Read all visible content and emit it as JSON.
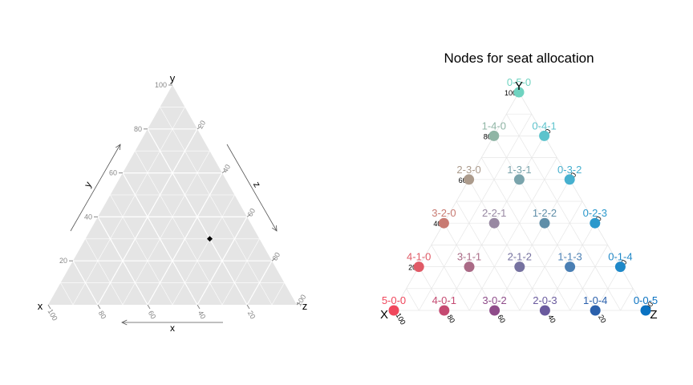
{
  "chart_data": [
    {
      "type": "scatter",
      "subtype": "ternary",
      "title": "",
      "axes": {
        "x": {
          "label": "x",
          "corner_label": "x",
          "ticks": [
            "20",
            "40",
            "60",
            "80",
            "100"
          ]
        },
        "y": {
          "label": "y",
          "corner_label": "y",
          "ticks": [
            "20",
            "40",
            "60",
            "80",
            "100"
          ]
        },
        "z": {
          "label": "z",
          "corner_label": "z",
          "ticks": [
            "20",
            "40",
            "60",
            "80",
            "100"
          ]
        }
      },
      "grid": true,
      "points": [
        {
          "x": 20,
          "y": 30,
          "z": 50
        }
      ],
      "colors": {
        "panel": "#e5e5e5",
        "grid": "#ffffff",
        "point": "#000000"
      }
    },
    {
      "type": "scatter",
      "subtype": "ternary",
      "title": "Nodes for seat allocation",
      "axes": {
        "X": {
          "corner_label": "X",
          "ticks": [
            "20",
            "40",
            "60",
            "80",
            "100"
          ]
        },
        "Y": {
          "corner_label": "Y",
          "ticks": [
            "20",
            "40",
            "60",
            "80",
            "100"
          ]
        },
        "Z": {
          "corner_label": "Z",
          "ticks": [
            "20",
            "40",
            "60",
            "80",
            "100"
          ]
        }
      },
      "grid": true,
      "nodes": [
        {
          "label": "0-5-0",
          "x": 0,
          "y": 5,
          "z": 0,
          "color": "#6fd3c0"
        },
        {
          "label": "1-4-0",
          "x": 1,
          "y": 4,
          "z": 0,
          "color": "#8fb5a5"
        },
        {
          "label": "0-4-1",
          "x": 0,
          "y": 4,
          "z": 1,
          "color": "#5cc3cc"
        },
        {
          "label": "2-3-0",
          "x": 2,
          "y": 3,
          "z": 0,
          "color": "#ac9b8c"
        },
        {
          "label": "1-3-1",
          "x": 1,
          "y": 3,
          "z": 1,
          "color": "#7aa4ac"
        },
        {
          "label": "0-3-2",
          "x": 0,
          "y": 3,
          "z": 2,
          "color": "#46b0cf"
        },
        {
          "label": "3-2-0",
          "x": 3,
          "y": 2,
          "z": 0,
          "color": "#c87a72"
        },
        {
          "label": "2-2-1",
          "x": 2,
          "y": 2,
          "z": 1,
          "color": "#9888a2"
        },
        {
          "label": "1-2-2",
          "x": 1,
          "y": 2,
          "z": 2,
          "color": "#5f8ea8"
        },
        {
          "label": "0-2-3",
          "x": 0,
          "y": 2,
          "z": 3,
          "color": "#2a98cc"
        },
        {
          "label": "4-1-0",
          "x": 4,
          "y": 1,
          "z": 0,
          "color": "#e05a66"
        },
        {
          "label": "3-1-1",
          "x": 3,
          "y": 1,
          "z": 1,
          "color": "#aa6a86"
        },
        {
          "label": "2-1-2",
          "x": 2,
          "y": 1,
          "z": 2,
          "color": "#7672a0"
        },
        {
          "label": "1-1-3",
          "x": 1,
          "y": 1,
          "z": 3,
          "color": "#4a7fb4"
        },
        {
          "label": "0-1-4",
          "x": 0,
          "y": 1,
          "z": 4,
          "color": "#1f88c8"
        },
        {
          "label": "5-0-0",
          "x": 5,
          "y": 0,
          "z": 0,
          "color": "#f0475c"
        },
        {
          "label": "4-0-1",
          "x": 4,
          "y": 0,
          "z": 1,
          "color": "#c54a72"
        },
        {
          "label": "3-0-2",
          "x": 3,
          "y": 0,
          "z": 2,
          "color": "#8f4c8a"
        },
        {
          "label": "2-0-3",
          "x": 2,
          "y": 0,
          "z": 3,
          "color": "#6a5a9e"
        },
        {
          "label": "1-0-4",
          "x": 1,
          "y": 0,
          "z": 4,
          "color": "#2a60ac"
        },
        {
          "label": "0-0-5",
          "x": 0,
          "y": 0,
          "z": 5,
          "color": "#0a72c2"
        }
      ]
    }
  ]
}
